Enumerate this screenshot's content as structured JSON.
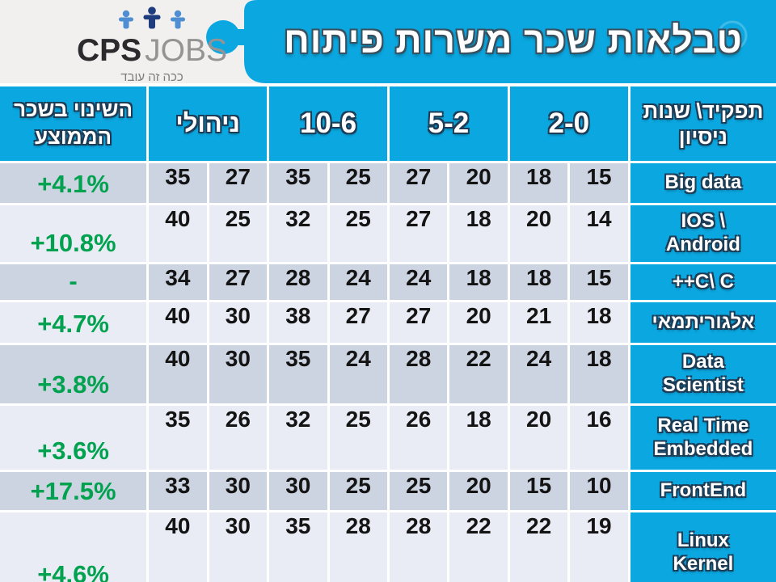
{
  "header": {
    "title": "טבלאות שכר משרות פיתוח"
  },
  "logo": {
    "brand_bold": "CPS",
    "brand_light": "JOBS",
    "tagline": "ככה זה עובד"
  },
  "table": {
    "headers": {
      "change": "השינוי בשכר\nהממוצע",
      "managerial": "ניהולי",
      "exp_6_10": "10-6",
      "exp_2_5": "5-2",
      "exp_0_2": "2-0",
      "role": "תפקיד\\ שנות\nניסיון"
    },
    "rows": [
      {
        "role": "Big data",
        "values": [
          35,
          27,
          35,
          25,
          27,
          20,
          18,
          15
        ],
        "change": "+4.1%"
      },
      {
        "role": "IOS \\\nAndroid",
        "values": [
          40,
          25,
          32,
          25,
          27,
          18,
          20,
          14
        ],
        "change": "+10.8%"
      },
      {
        "role": "++C\\ C",
        "values": [
          34,
          27,
          28,
          24,
          24,
          18,
          18,
          15
        ],
        "change": "-"
      },
      {
        "role": "אלגוריתמאי",
        "values": [
          40,
          30,
          38,
          27,
          27,
          20,
          21,
          18
        ],
        "change": "+4.7%"
      },
      {
        "role": "Data\nScientist",
        "values": [
          40,
          30,
          35,
          24,
          28,
          22,
          24,
          18
        ],
        "change": "+3.8%"
      },
      {
        "role": "Real Time\nEmbedded",
        "values": [
          35,
          26,
          32,
          25,
          26,
          18,
          20,
          16
        ],
        "change": "+3.6%"
      },
      {
        "role": "FrontEnd",
        "values": [
          33,
          30,
          30,
          25,
          25,
          20,
          15,
          10
        ],
        "change": "+17.5%"
      },
      {
        "role": "Linux\nKernel",
        "values": [
          40,
          30,
          35,
          28,
          28,
          22,
          22,
          19
        ],
        "change": "+4.6%"
      }
    ]
  },
  "colors": {
    "azure": "#0ba7e0",
    "green": "#00a24f",
    "row_dark": "#ccd3e1",
    "row_light": "#e9ecf4",
    "strip_bg": "#f1f0ee",
    "number_text": "#141414",
    "outline_navy": "#1d3c56"
  },
  "chart_data": {
    "type": "table",
    "title": "טבלאות שכר משרות פיתוח",
    "columns_read_rtl": [
      "תפקיד\\ שנות ניסיון",
      "0-2",
      "2-5",
      "6-10",
      "ניהולי",
      "השינוי בשכר הממוצע"
    ],
    "sub_columns_per_experience": [
      "max",
      "min"
    ],
    "rows": [
      {
        "role": "Big data",
        "years_0_2": [
          18,
          15
        ],
        "years_2_5": [
          27,
          20
        ],
        "years_6_10": [
          35,
          25
        ],
        "managerial": [
          35,
          27
        ],
        "avg_change": "+4.1%"
      },
      {
        "role": "IOS \\ Android",
        "years_0_2": [
          20,
          14
        ],
        "years_2_5": [
          27,
          18
        ],
        "years_6_10": [
          32,
          25
        ],
        "managerial": [
          40,
          25
        ],
        "avg_change": "+10.8%"
      },
      {
        "role": "C \\ C++",
        "years_0_2": [
          18,
          15
        ],
        "years_2_5": [
          24,
          18
        ],
        "years_6_10": [
          28,
          24
        ],
        "managerial": [
          34,
          27
        ],
        "avg_change": "-"
      },
      {
        "role": "אלגוריתמאי",
        "years_0_2": [
          21,
          18
        ],
        "years_2_5": [
          27,
          20
        ],
        "years_6_10": [
          38,
          27
        ],
        "managerial": [
          40,
          30
        ],
        "avg_change": "+4.7%"
      },
      {
        "role": "Data Scientist",
        "years_0_2": [
          24,
          18
        ],
        "years_2_5": [
          28,
          22
        ],
        "years_6_10": [
          35,
          24
        ],
        "managerial": [
          40,
          30
        ],
        "avg_change": "+3.8%"
      },
      {
        "role": "Real Time Embedded",
        "years_0_2": [
          20,
          16
        ],
        "years_2_5": [
          26,
          18
        ],
        "years_6_10": [
          32,
          25
        ],
        "managerial": [
          35,
          26
        ],
        "avg_change": "+3.6%"
      },
      {
        "role": "FrontEnd",
        "years_0_2": [
          15,
          10
        ],
        "years_2_5": [
          25,
          20
        ],
        "years_6_10": [
          30,
          25
        ],
        "managerial": [
          33,
          30
        ],
        "avg_change": "+17.5%"
      },
      {
        "role": "Linux Kernel",
        "years_0_2": [
          22,
          19
        ],
        "years_2_5": [
          28,
          22
        ],
        "years_6_10": [
          35,
          28
        ],
        "managerial": [
          40,
          30
        ],
        "avg_change": "+4.6%"
      }
    ]
  }
}
